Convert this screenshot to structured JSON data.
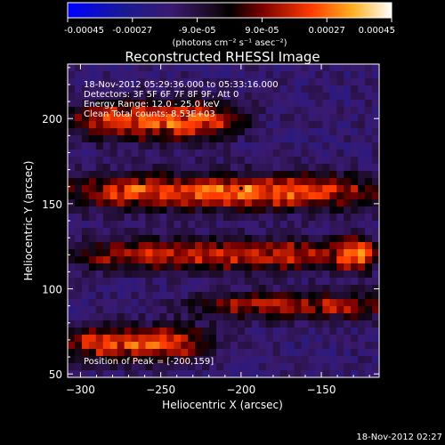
{
  "chart_data": {
    "type": "heatmap",
    "title": "Reconstructed RHESSI Image",
    "xlabel": "Heliocentric X (arcsec)",
    "ylabel": "Heliocentric Y (arcsec)",
    "xlim": [
      -308,
      -114
    ],
    "ylim": [
      48,
      232
    ],
    "x_ticks": [
      -300,
      -250,
      -200,
      -150
    ],
    "y_ticks": [
      50,
      100,
      150,
      200
    ],
    "colorbar": {
      "range": [
        -0.00045,
        0.00045
      ],
      "tick_labels": [
        "-0.00045",
        "-0.00027",
        "-9.0e-05",
        "9.0e-05",
        "0.00027",
        "0.00045"
      ],
      "units": "(photons cm⁻² s⁻¹ asec⁻²)"
    },
    "annotations": [
      "18-Nov-2012 05:29:36.000 to 05:33:16.000",
      "Detectors: 3F 5F 6F 7F 8F 9F, Att 0",
      "Energy Range: 12.0 - 25.0 keV",
      "Clean     Total counts: 8.53E+03"
    ],
    "peak_label": "Position of Peak = [-200,159]",
    "peak": {
      "x": -200,
      "y": 159
    },
    "features": [
      {
        "x_center": -252,
        "y_center": 199,
        "x_half_width": 52,
        "y_half_width": 11,
        "amplitude": 0.00044
      },
      {
        "x_center": -210,
        "y_center": 157,
        "x_half_width": 98,
        "y_half_width": 10,
        "amplitude": 0.00045
      },
      {
        "x_center": -215,
        "y_center": 120,
        "x_half_width": 92,
        "y_half_width": 9,
        "amplitude": 0.00036
      },
      {
        "x_center": -165,
        "y_center": 90,
        "x_half_width": 65,
        "y_half_width": 8,
        "amplitude": 0.00031
      },
      {
        "x_center": -265,
        "y_center": 68,
        "x_half_width": 45,
        "y_half_width": 10,
        "amplitude": 0.00042
      },
      {
        "x_center": -128,
        "y_center": 120,
        "x_half_width": 12,
        "y_half_width": 9,
        "amplitude": 0.00037
      }
    ],
    "background": -0.00016,
    "grid": false,
    "footer_timestamp": "18-Nov-2012 02:27"
  }
}
